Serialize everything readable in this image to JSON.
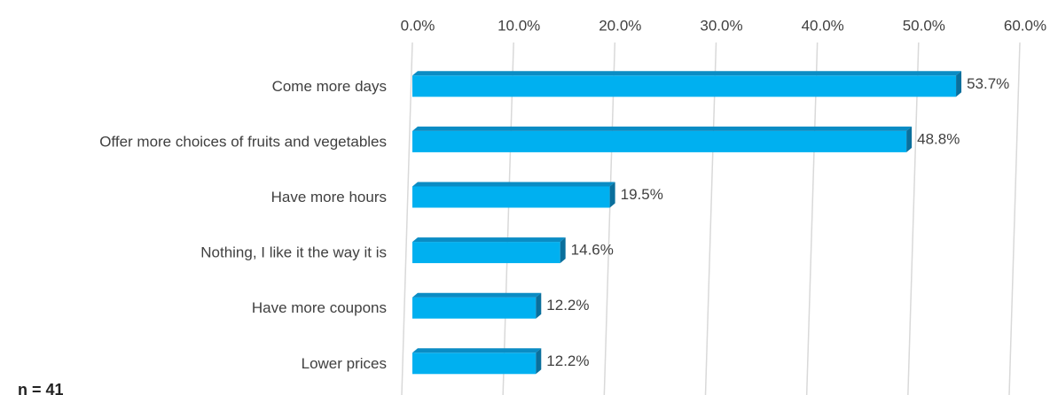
{
  "chart_data": {
    "type": "bar",
    "orientation": "horizontal",
    "categories": [
      "Come more days",
      "Offer more choices of fruits and vegetables",
      "Have more hours",
      "Nothing, I like it the way it is",
      "Have more coupons",
      "Lower prices"
    ],
    "values": [
      53.7,
      48.8,
      19.5,
      14.6,
      12.2,
      12.2
    ],
    "value_labels": [
      "53.7%",
      "48.8%",
      "19.5%",
      "14.6%",
      "12.2%",
      "12.2%"
    ],
    "color": "#00b0f0",
    "xlim": [
      0,
      60
    ],
    "xticks": [
      {
        "value": 0,
        "label": "0.0%"
      },
      {
        "value": 10,
        "label": "10.0%"
      },
      {
        "value": 20,
        "label": "20.0%"
      },
      {
        "value": 30,
        "label": "30.0%"
      },
      {
        "value": 40,
        "label": "40.0%"
      },
      {
        "value": 50,
        "label": "50.0%"
      },
      {
        "value": 60,
        "label": "60.0%"
      }
    ],
    "grid": true,
    "annotation": "n = 41"
  }
}
